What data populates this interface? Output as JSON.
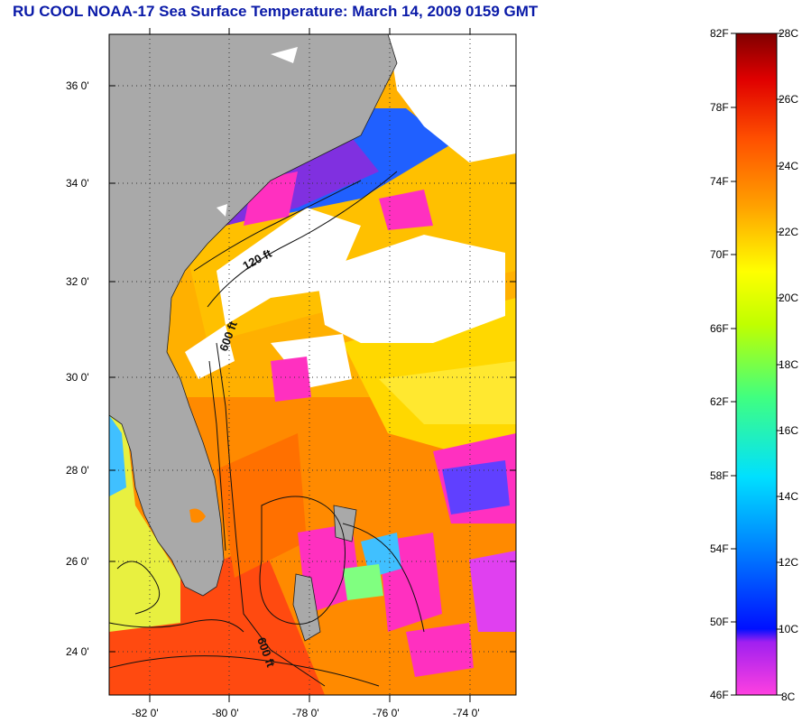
{
  "title": "RU COOL  NOAA-17  Sea Surface Temperature:  March 14, 2009 0159 GMT",
  "y_ticks": [
    "36 0'",
    "34 0'",
    "32 0'",
    "30 0'",
    "28 0'",
    "26 0'",
    "24 0'"
  ],
  "x_ticks": [
    "-82 0'",
    "-80 0'",
    "-78 0'",
    "-76 0'",
    "-74 0'"
  ],
  "contour_labels": [
    "120 ft",
    "600 ft",
    "600 ft"
  ],
  "colorbar": {
    "fahrenheit": [
      "82F",
      "78F",
      "74F",
      "70F",
      "66F",
      "62F",
      "58F",
      "54F",
      "50F",
      "46F"
    ],
    "celsius": [
      "28C",
      "26C",
      "24C",
      "22C",
      "20C",
      "18C",
      "16C",
      "14C",
      "12C",
      "10C",
      "8C"
    ]
  },
  "colors": {
    "title": "#0a1aa8",
    "land": "#a9a9a9",
    "cloud": "#ffffff",
    "warm": "#ff7a00",
    "hot": "#ff3a1a",
    "mild": "#ffd000",
    "cool": "#ff30c0"
  }
}
